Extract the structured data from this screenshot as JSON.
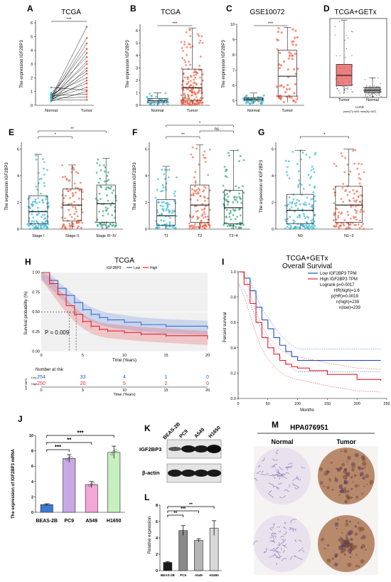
{
  "panel_letters": [
    "A",
    "B",
    "C",
    "D",
    "E",
    "F",
    "G",
    "H",
    "I",
    "J",
    "K",
    "L",
    "M"
  ],
  "colors": {
    "normal": "#2ab6d6",
    "tumor": "#f25a3c",
    "green": "#2a9d7a",
    "purple": "#c9a8e6",
    "pink": "#f2a7d8",
    "lightgreen": "#c7efc0",
    "blue": "#1f4fbf",
    "red": "#e8202a"
  },
  "chart_data": [
    {
      "id": "A",
      "type": "line",
      "title": "TCGA",
      "xlabel": "",
      "ylabel": "The expression IGF2BP3",
      "categories": [
        "Normal",
        "Tumor"
      ],
      "ylim": [
        0,
        6
      ],
      "yticks": [
        0,
        1,
        2,
        3,
        4,
        5,
        6
      ],
      "paired_series": [
        [
          0.6,
          5.7
        ],
        [
          0.6,
          4.9
        ],
        [
          0.5,
          4.5
        ],
        [
          0.7,
          4.1
        ],
        [
          0.4,
          3.8
        ],
        [
          0.9,
          3.5
        ],
        [
          0.5,
          3.2
        ],
        [
          0.6,
          3.0
        ],
        [
          0.3,
          2.7
        ],
        [
          0.7,
          2.5
        ],
        [
          0.5,
          2.3
        ],
        [
          0.8,
          2.0
        ],
        [
          0.4,
          1.8
        ],
        [
          0.6,
          1.6
        ],
        [
          0.5,
          1.3
        ],
        [
          1.3,
          1.1
        ],
        [
          0.3,
          1.0
        ],
        [
          0.7,
          0.8
        ],
        [
          0.5,
          0.6
        ],
        [
          0.4,
          0.4
        ]
      ],
      "significance": "***"
    },
    {
      "id": "B",
      "type": "box",
      "title": "TCGA",
      "ylabel": "The expression IGF2BP3",
      "categories": [
        "Normal",
        "Tumor"
      ],
      "ylim": [
        0,
        6.5
      ],
      "yticks": [
        0,
        1,
        2,
        3,
        4,
        5,
        6
      ],
      "boxes": [
        {
          "min": 0,
          "q1": 0.2,
          "median": 0.35,
          "q3": 0.55,
          "max": 1.0
        },
        {
          "min": 0,
          "q1": 0.4,
          "median": 1.4,
          "q3": 2.9,
          "max": 6.2
        }
      ],
      "significance": "***"
    },
    {
      "id": "C",
      "type": "box",
      "title": "GSE10072",
      "ylabel": "The expression IGF2BP3",
      "categories": [
        "Normal",
        "Tumor"
      ],
      "ylim": [
        4.7,
        10
      ],
      "yticks": [
        5,
        6,
        7,
        8,
        9,
        10
      ],
      "boxes": [
        {
          "min": 4.8,
          "q1": 5.0,
          "median": 5.1,
          "q3": 5.2,
          "max": 5.5
        },
        {
          "min": 4.9,
          "q1": 5.3,
          "median": 6.6,
          "q3": 8.3,
          "max": 9.8
        }
      ],
      "significance": "***"
    },
    {
      "id": "D",
      "type": "box",
      "title": "TCGA+GETx",
      "categories": [
        "Tumor",
        "Normal"
      ],
      "ylim": [
        0,
        10
      ],
      "yticks": [],
      "boxes": [
        {
          "min": 0.5,
          "q1": 1.5,
          "median": 2.8,
          "q3": 4.2,
          "max": 9.8
        },
        {
          "min": 0,
          "q1": 0.6,
          "median": 0.9,
          "q3": 1.3,
          "max": 2.5
        }
      ],
      "footer": "LUAD",
      "footer2": "(num(T)=483; num(N)=347)"
    },
    {
      "id": "E",
      "type": "box",
      "ylabel": "The expression IGF2BP3",
      "categories": [
        "Stage I",
        "Stage II",
        "Stage III~IV"
      ],
      "ylim": [
        0,
        6.5
      ],
      "yticks": [
        0,
        2,
        4,
        6
      ],
      "boxes": [
        {
          "min": 0,
          "q1": 0.4,
          "median": 1.3,
          "q3": 2.5,
          "max": 5.6
        },
        {
          "min": 0,
          "q1": 0.6,
          "median": 1.8,
          "q3": 3.0,
          "max": 4.8
        },
        {
          "min": 0,
          "q1": 0.5,
          "median": 1.9,
          "q3": 3.3,
          "max": 5.3
        }
      ],
      "brackets": [
        {
          "from": 0,
          "to": 1,
          "label": "*"
        },
        {
          "from": 0,
          "to": 2,
          "label": "**"
        }
      ]
    },
    {
      "id": "F",
      "type": "box",
      "ylabel": "The expression IGF2BP3",
      "categories": [
        "T1",
        "T2",
        "T3~4"
      ],
      "ylim": [
        0,
        6.5
      ],
      "yticks": [
        0,
        2,
        4,
        6
      ],
      "boxes": [
        {
          "min": 0,
          "q1": 0.3,
          "median": 1.0,
          "q3": 2.2,
          "max": 4.7
        },
        {
          "min": 0,
          "q1": 0.5,
          "median": 1.8,
          "q3": 3.3,
          "max": 6.3
        },
        {
          "min": 0,
          "q1": 0.4,
          "median": 1.6,
          "q3": 2.9,
          "max": 5.9
        }
      ],
      "brackets": [
        {
          "from": 0,
          "to": 1,
          "label": "**"
        },
        {
          "from": 1,
          "to": 2,
          "label": "ns"
        },
        {
          "from": 0,
          "to": 2,
          "label": "*"
        }
      ]
    },
    {
      "id": "G",
      "type": "box",
      "ylabel": "The expression of IGF2BP3",
      "categories": [
        "N0",
        "N1~3"
      ],
      "ylim": [
        0,
        6.5
      ],
      "yticks": [
        0,
        2,
        4,
        6
      ],
      "boxes": [
        {
          "min": 0,
          "q1": 0.4,
          "median": 1.4,
          "q3": 2.6,
          "max": 5.9
        },
        {
          "min": 0,
          "q1": 0.5,
          "median": 1.8,
          "q3": 3.2,
          "max": 6.0
        }
      ],
      "brackets": [
        {
          "from": 0,
          "to": 1,
          "label": "*"
        }
      ]
    },
    {
      "id": "H",
      "type": "line",
      "title": "TCGA",
      "xlabel": "Time (Years)",
      "ylabel": "Survival probability (%)",
      "legend_title": "IGF2BP3",
      "legend": [
        "Low",
        "High"
      ],
      "xlim": [
        0,
        20
      ],
      "ylim": [
        0,
        1
      ],
      "xticks": [
        0,
        5,
        10,
        15,
        20
      ],
      "yticks": [
        "0.00",
        "0.25",
        "0.50",
        "0.75",
        "1.00"
      ],
      "series": [
        {
          "name": "Low",
          "x": [
            0,
            1,
            2,
            3,
            4,
            5,
            6,
            7,
            8,
            10,
            12,
            15,
            20
          ],
          "y": [
            1,
            0.9,
            0.8,
            0.71,
            0.62,
            0.53,
            0.47,
            0.43,
            0.4,
            0.37,
            0.34,
            0.32,
            0.3
          ]
        },
        {
          "name": "High",
          "x": [
            0,
            1,
            2,
            3,
            4,
            5,
            6,
            7,
            8,
            10,
            12,
            15,
            20
          ],
          "y": [
            1,
            0.86,
            0.72,
            0.58,
            0.47,
            0.38,
            0.32,
            0.28,
            0.26,
            0.24,
            0.22,
            0.2,
            0.17
          ]
        }
      ],
      "pvalue": "P = 0.009",
      "risk_title": "Number at risk",
      "risk_low": [
        "254",
        "33",
        "4",
        "1",
        "0"
      ],
      "risk_high": [
        "250",
        "20",
        "5",
        "2",
        "0"
      ],
      "risk_labels": [
        "Low",
        "High"
      ],
      "risk_ylabel": "IGF2BP3"
    },
    {
      "id": "I",
      "type": "line",
      "title": "TCGA+GETx",
      "subtitle": "Overall Survival",
      "xlabel": "Months",
      "ylabel": "Percent survival",
      "xlim": [
        0,
        250
      ],
      "ylim": [
        0,
        1
      ],
      "xticks": [
        0,
        50,
        100,
        150,
        200,
        250
      ],
      "yticks": [
        "0.0",
        "0.2",
        "0.4",
        "0.6",
        "0.8",
        "1.0"
      ],
      "series": [
        {
          "name": "Low IGF2BP3 TPM",
          "x": [
            0,
            10,
            20,
            30,
            40,
            50,
            60,
            70,
            80,
            90,
            100,
            120,
            150,
            200,
            240
          ],
          "y": [
            1,
            0.95,
            0.85,
            0.72,
            0.62,
            0.55,
            0.48,
            0.42,
            0.37,
            0.33,
            0.3,
            0.3,
            0.3,
            0.3,
            0.3
          ]
        },
        {
          "name": "High IGF2BP3 TPM",
          "x": [
            0,
            10,
            20,
            30,
            40,
            50,
            60,
            70,
            80,
            90,
            100,
            120,
            150,
            200,
            240
          ],
          "y": [
            1,
            0.9,
            0.75,
            0.6,
            0.48,
            0.4,
            0.35,
            0.3,
            0.27,
            0.25,
            0.24,
            0.22,
            0.19,
            0.15,
            0.14
          ]
        }
      ],
      "stats": [
        "Logrank p=0.0017",
        "HR(high)=1.6",
        "p(HR)=0.0019",
        "n(high)=239",
        "n(low)=239"
      ]
    },
    {
      "id": "J",
      "type": "bar",
      "ylabel": "The expression of IGF2BP3 mRNA",
      "categories": [
        "BEAS-2B",
        "PC9",
        "A549",
        "H1650"
      ],
      "values": [
        1.0,
        7.0,
        3.6,
        7.8
      ],
      "errors": [
        0.1,
        0.5,
        0.4,
        0.8
      ],
      "ylim": [
        0,
        10
      ],
      "yticks": [
        0,
        2,
        4,
        6,
        8,
        10
      ],
      "brackets": [
        {
          "from": 0,
          "to": 3,
          "label": "***"
        },
        {
          "from": 0,
          "to": 2,
          "label": "**"
        },
        {
          "from": 0,
          "to": 1,
          "label": "***"
        }
      ]
    },
    {
      "id": "L",
      "type": "bar",
      "ylabel": "Relative expression",
      "categories": [
        "BEAS-2B",
        "PC9",
        "A549",
        "H1650"
      ],
      "values": [
        1.0,
        4.9,
        3.7,
        5.2
      ],
      "errors": [
        0.1,
        0.6,
        0.2,
        0.9
      ],
      "ylim": [
        0,
        8
      ],
      "yticks": [
        0,
        2,
        4,
        6,
        8
      ],
      "brackets": [
        {
          "from": 0,
          "to": 3,
          "label": "**"
        },
        {
          "from": 0,
          "to": 2,
          "label": "***"
        },
        {
          "from": 0,
          "to": 1,
          "label": "**"
        }
      ]
    }
  ],
  "panel_K": {
    "cells": [
      "BEAS-2B",
      "PC9",
      "A549",
      "H1650"
    ],
    "rows": [
      "IGF2BP3",
      "β-actin"
    ]
  },
  "panel_M": {
    "title": "HPA076951",
    "col_normal": "Normal",
    "col_tumor": "Tumor"
  }
}
